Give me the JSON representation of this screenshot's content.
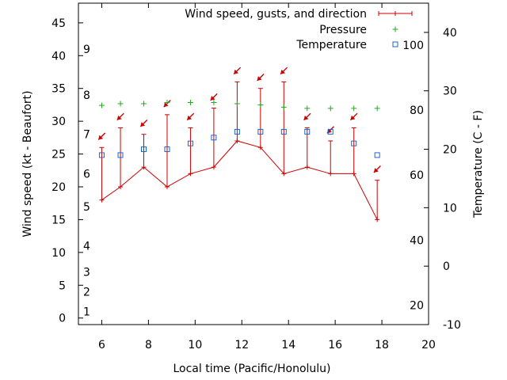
{
  "chart_data": {
    "type": "line",
    "title": "",
    "xlabel": "Local time (Pacific/Honolulu)",
    "ylabel": "Wind speed (kt - Beaufort)",
    "y2label": "Temperature (C - F)",
    "xlim": [
      5,
      20
    ],
    "ylim": [
      -1,
      48
    ],
    "y2lim": [
      -10,
      45
    ],
    "x_ticks": [
      6,
      8,
      10,
      12,
      14,
      16,
      18,
      20
    ],
    "y_ticks": [
      0,
      5,
      10,
      15,
      20,
      25,
      30,
      35,
      40,
      45
    ],
    "y2_ticks": [
      -10,
      0,
      10,
      20,
      30,
      40
    ],
    "beaufort_labels": [
      {
        "label": "1",
        "kt": 1
      },
      {
        "label": "2",
        "kt": 4
      },
      {
        "label": "3",
        "kt": 7
      },
      {
        "label": "4",
        "kt": 11
      },
      {
        "label": "5",
        "kt": 17
      },
      {
        "label": "6",
        "kt": 22
      },
      {
        "label": "7",
        "kt": 28
      },
      {
        "label": "8",
        "kt": 34
      },
      {
        "label": "9",
        "kt": 41
      }
    ],
    "fahrenheit_labels": [
      {
        "label": "20",
        "celsius": -6.7
      },
      {
        "label": "40",
        "celsius": 4.4
      },
      {
        "label": "60",
        "celsius": 15.6
      },
      {
        "label": "80",
        "celsius": 26.7
      },
      {
        "label": "100",
        "celsius": 37.8
      }
    ],
    "legend": {
      "position": "top-right",
      "entries": [
        "Wind speed, gusts, and direction",
        "Pressure",
        "Temperature"
      ]
    },
    "colors": {
      "wind": "#cc0000",
      "pressure": "#22aa22",
      "temperature": "#1a66cc"
    },
    "series": [
      {
        "name": "Wind speed, gusts, and direction",
        "x": [
          6,
          6.8,
          7.8,
          8.8,
          9.8,
          10.8,
          11.8,
          12.8,
          13.8,
          14.8,
          15.8,
          16.8,
          17.8
        ],
        "speed": [
          18,
          20,
          23,
          20,
          22,
          23,
          27,
          26,
          22,
          23,
          22,
          22,
          15
        ],
        "gust": [
          26,
          29,
          28,
          31,
          29,
          32,
          36,
          35,
          36,
          29,
          27,
          29,
          21
        ],
        "direction_deg": [
          45,
          45,
          45,
          45,
          45,
          45,
          45,
          45,
          45,
          45,
          45,
          45,
          45
        ]
      },
      {
        "name": "Pressure",
        "x": [
          6,
          6.8,
          7.8,
          8.8,
          9.8,
          10.8,
          11.8,
          12.8,
          13.8,
          14.8,
          15.8,
          16.8,
          17.8
        ],
        "y_temp_axis": [
          27.5,
          27.8,
          27.8,
          28.0,
          28.0,
          28.0,
          27.8,
          27.6,
          27.2,
          27.0,
          27.0,
          27.0,
          27.0
        ]
      },
      {
        "name": "Temperature",
        "x": [
          6,
          6.8,
          7.8,
          8.8,
          9.8,
          10.8,
          11.8,
          12.8,
          13.8,
          14.8,
          15.8,
          16.8,
          17.8
        ],
        "y_temp_axis": [
          19,
          19,
          20,
          20,
          21,
          22,
          23,
          23,
          23,
          23,
          23,
          21,
          19
        ]
      }
    ]
  }
}
